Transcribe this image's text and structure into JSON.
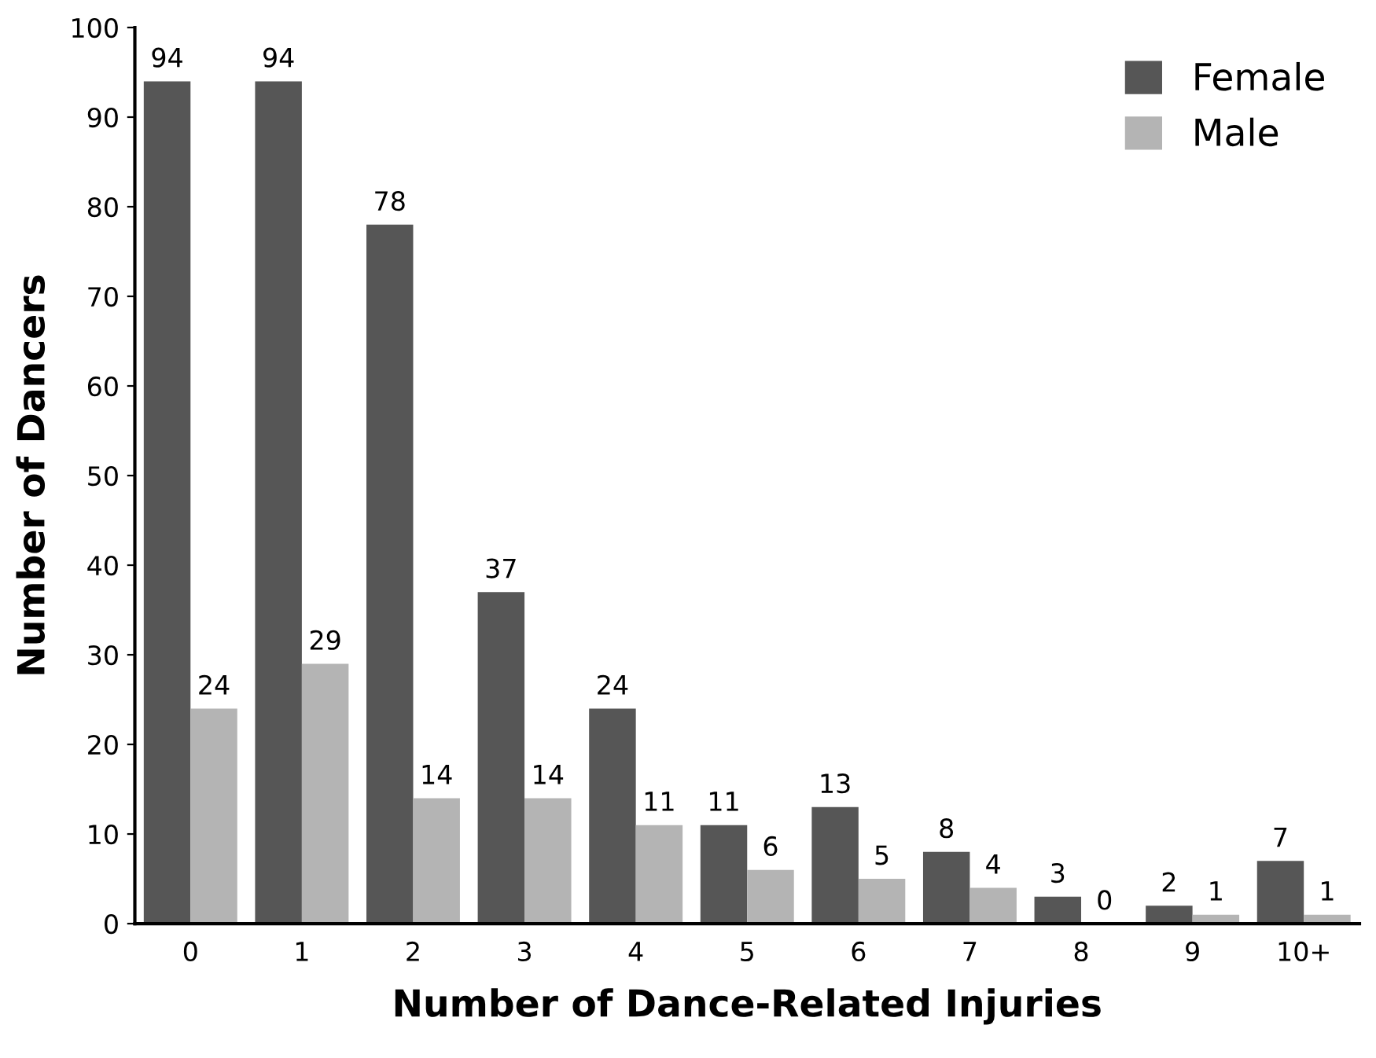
{
  "chart_data": {
    "type": "bar",
    "xlabel": "Number of Dance-Related Injuries",
    "ylabel": "Number of Dancers",
    "categories": [
      "0",
      "1",
      "2",
      "3",
      "4",
      "5",
      "6",
      "7",
      "8",
      "9",
      "10+"
    ],
    "series": [
      {
        "name": "Female",
        "color": "#565656",
        "values": [
          94,
          94,
          78,
          37,
          24,
          11,
          13,
          8,
          3,
          2,
          7
        ]
      },
      {
        "name": "Male",
        "color": "#b4b4b4",
        "values": [
          24,
          29,
          14,
          14,
          11,
          6,
          5,
          4,
          0,
          1,
          1
        ]
      }
    ],
    "ylim": [
      0,
      100
    ],
    "yticks": [
      0,
      10,
      20,
      30,
      40,
      50,
      60,
      70,
      80,
      90,
      100
    ],
    "grid": false,
    "legend": "top right",
    "data_labels": true
  }
}
